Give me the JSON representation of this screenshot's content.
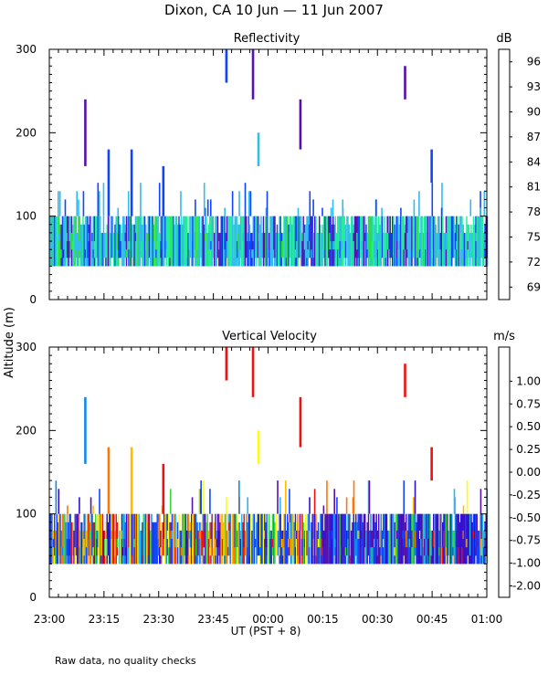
{
  "figure": {
    "title": "Dixon, CA 10 Jun — 11 Jun 2007",
    "footnote": "Raw data, no quality checks",
    "xlabel": "UT  (PST + 8)",
    "ylabel": "Altitude (m)"
  },
  "chart_data": [
    {
      "type": "heatmap",
      "title": "Reflectivity",
      "xlabel": "UT  (PST + 8)",
      "ylabel": "Altitude (m)",
      "x_tick_labels": [
        "23:00",
        "23:15",
        "23:30",
        "23:45",
        "00:00",
        "00:15",
        "00:30",
        "00:45",
        "01:00"
      ],
      "xlim_minutes": [
        0,
        120
      ],
      "y_ticks": [
        0,
        100,
        200,
        300
      ],
      "ylim": [
        0,
        300
      ],
      "colorbar": {
        "unit": "dB",
        "tick_labels": [
          "69",
          "72",
          "75",
          "78",
          "81",
          "84",
          "87",
          "90",
          "93",
          "96"
        ],
        "colors": [
          "#ccff33",
          "#33dd33",
          "#22ee99",
          "#33bbee",
          "#1144ff",
          "#5511aa",
          "#330022",
          "#ee1111",
          "#ff7700",
          "#ffbb00"
        ]
      },
      "background_band": {
        "start_min": 0,
        "end_min": 120,
        "bottom_m": 40,
        "top_m": 100
      },
      "echoes": [
        {
          "t": 9.8,
          "bottom_m": 160,
          "top_m": 240,
          "class": 5
        },
        {
          "t": 16.2,
          "bottom_m": 100,
          "top_m": 180,
          "class": 4
        },
        {
          "t": 22.5,
          "bottom_m": 100,
          "top_m": 180,
          "class": 4
        },
        {
          "t": 31.2,
          "bottom_m": 100,
          "top_m": 160,
          "class": 4
        },
        {
          "t": 48.5,
          "bottom_m": 260,
          "top_m": 300,
          "class": 4
        },
        {
          "t": 55.8,
          "bottom_m": 240,
          "top_m": 300,
          "class": 5
        },
        {
          "t": 57.3,
          "bottom_m": 160,
          "top_m": 200,
          "class": 3
        },
        {
          "t": 68.8,
          "bottom_m": 180,
          "top_m": 240,
          "class": 5
        },
        {
          "t": 97.5,
          "bottom_m": 240,
          "top_m": 280,
          "class": 5
        },
        {
          "t": 104.8,
          "bottom_m": 140,
          "top_m": 180,
          "class": 4
        }
      ]
    },
    {
      "type": "heatmap",
      "title": "Vertical Velocity",
      "xlabel": "UT  (PST + 8)",
      "ylabel": "Altitude (m)",
      "x_tick_labels": [
        "23:00",
        "23:15",
        "23:30",
        "23:45",
        "00:00",
        "00:15",
        "00:30",
        "00:45",
        "01:00"
      ],
      "xlim_minutes": [
        0,
        120
      ],
      "y_ticks": [
        0,
        100,
        200,
        300
      ],
      "ylim": [
        0,
        300
      ],
      "colorbar": {
        "unit": "m/s",
        "tick_labels": [
          "-2.00",
          "-1.00",
          "-0.75",
          "-0.50",
          "-0.25",
          "0.00",
          "0.25",
          "0.50",
          "0.75",
          "1.00"
        ],
        "colors": [
          "#330022",
          "#5511aa",
          "#3311cc",
          "#1144ff",
          "#1188ee",
          "#22bbee",
          "#33dd33",
          "#ffff00",
          "#ffbb00",
          "#ff7700",
          "#ee1111"
        ]
      },
      "background_band": {
        "start_min": 0,
        "end_min": 120,
        "bottom_m": 40,
        "top_m": 100
      },
      "echoes": [
        {
          "t": 9.8,
          "bottom_m": 160,
          "top_m": 240,
          "class": 4
        },
        {
          "t": 16.2,
          "bottom_m": 100,
          "top_m": 180,
          "class": 9
        },
        {
          "t": 22.5,
          "bottom_m": 100,
          "top_m": 180,
          "class": 8
        },
        {
          "t": 31.2,
          "bottom_m": 100,
          "top_m": 160,
          "class": 10
        },
        {
          "t": 48.5,
          "bottom_m": 260,
          "top_m": 300,
          "class": 10
        },
        {
          "t": 55.8,
          "bottom_m": 240,
          "top_m": 300,
          "class": 10
        },
        {
          "t": 57.3,
          "bottom_m": 160,
          "top_m": 200,
          "class": 7
        },
        {
          "t": 68.8,
          "bottom_m": 180,
          "top_m": 240,
          "class": 10
        },
        {
          "t": 97.5,
          "bottom_m": 240,
          "top_m": 280,
          "class": 10
        },
        {
          "t": 104.8,
          "bottom_m": 140,
          "top_m": 180,
          "class": 10
        }
      ]
    }
  ]
}
